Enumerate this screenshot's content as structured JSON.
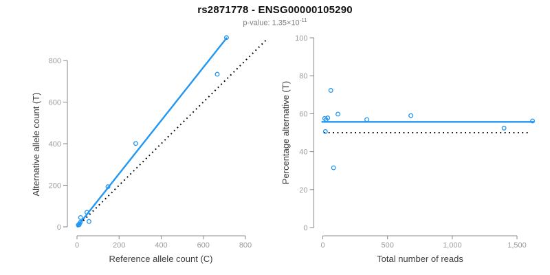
{
  "header": {
    "title": "rs2871778 - ENSG00000105290",
    "subtitle_label": "p-value:",
    "subtitle_mantissa": "1.35×10",
    "subtitle_exponent": "-11"
  },
  "colors": {
    "accent_blue": "#2196f3",
    "identity_black": "#000000",
    "axis_gray": "#8f8f8f",
    "tick_label_gray": "#9a9a9a"
  },
  "chart_data": [
    {
      "panel": "left-scatter-plot",
      "type": "scatter",
      "xlabel": "Reference allele count (C)",
      "ylabel": "Alternative allele count (T)",
      "xlim": [
        0,
        905
      ],
      "ylim": [
        0,
        915
      ],
      "xticks": [
        0,
        200,
        400,
        600,
        800
      ],
      "xtick_labels": [
        "0",
        "200",
        "400",
        "600",
        "800"
      ],
      "yticks": [
        0,
        200,
        400,
        600,
        800
      ],
      "ytick_labels": [
        "0",
        "200",
        "400",
        "600",
        "800"
      ],
      "grid": false,
      "point_color": "#2196f3",
      "points": [
        [
          6,
          9
        ],
        [
          10,
          10
        ],
        [
          11,
          14
        ],
        [
          16,
          22
        ],
        [
          17,
          45
        ],
        [
          47,
          70
        ],
        [
          57,
          26
        ],
        [
          147,
          193
        ],
        [
          279,
          401
        ],
        [
          666,
          734
        ],
        [
          710,
          910
        ]
      ],
      "lines": [
        {
          "name": "fit-line",
          "style": "solid",
          "color": "#2196f3",
          "width": 2.4,
          "x": [
            0,
            712
          ],
          "y": [
            0,
            910
          ]
        },
        {
          "name": "identity-line",
          "style": "dotted",
          "color": "#000000",
          "width": 2,
          "x": [
            0,
            903
          ],
          "y": [
            0,
            903
          ]
        }
      ]
    },
    {
      "panel": "right-scatter-plot",
      "type": "scatter",
      "xlabel": "Total number of reads",
      "ylabel": "Percentage alternative (T)",
      "xlim": [
        0,
        1635
      ],
      "ylim": [
        0,
        100
      ],
      "xticks": [
        0,
        500,
        1000,
        1500
      ],
      "xtick_labels": [
        "0",
        "500",
        "1,000",
        "1,500"
      ],
      "yticks": [
        0,
        20,
        40,
        60,
        80,
        100
      ],
      "ytick_labels": [
        "0",
        "20",
        "40",
        "60",
        "80",
        "100"
      ],
      "grid": false,
      "point_color": "#2196f3",
      "points": [
        [
          15,
          57.5
        ],
        [
          20,
          50.6
        ],
        [
          25,
          56.8
        ],
        [
          38,
          57.8
        ],
        [
          62,
          72.3
        ],
        [
          83,
          31.5
        ],
        [
          117,
          59.8
        ],
        [
          340,
          56.9
        ],
        [
          680,
          59.0
        ],
        [
          1400,
          52.4
        ],
        [
          1620,
          56.2
        ]
      ],
      "lines": [
        {
          "name": "mean-percentage-line",
          "style": "solid",
          "color": "#2196f3",
          "width": 2.4,
          "x": [
            -10,
            1635
          ],
          "y": [
            55.7,
            55.7
          ]
        },
        {
          "name": "fifty-percent-line",
          "style": "dotted",
          "color": "#000000",
          "width": 2,
          "x": [
            10,
            1600
          ],
          "y": [
            50,
            50
          ]
        }
      ]
    }
  ]
}
